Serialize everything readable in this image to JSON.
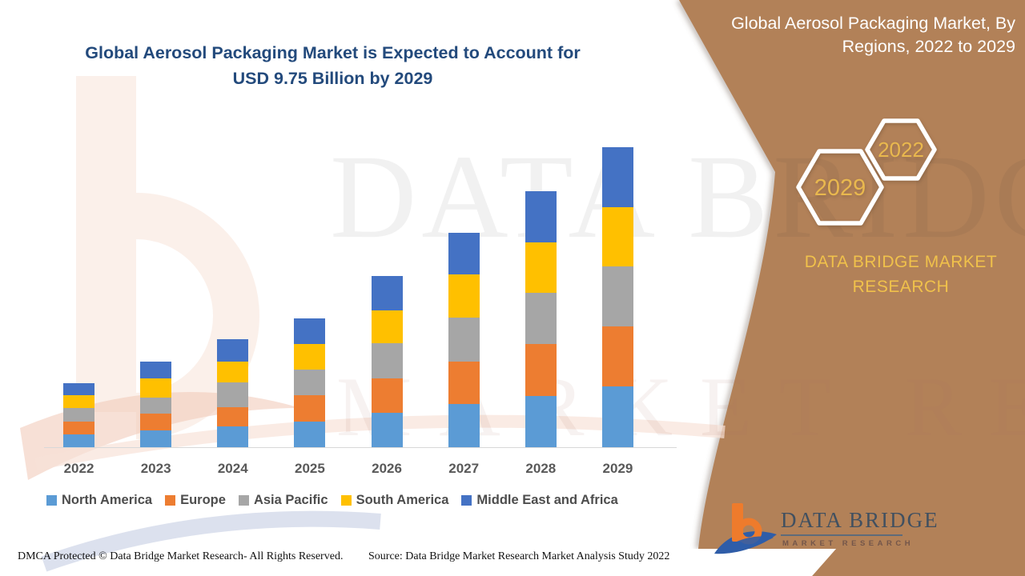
{
  "title": {
    "line1": "Global Aerosol Packaging Market is Expected to Account for",
    "line2": "USD 9.75 Billion by 2029"
  },
  "side_panel": {
    "heading_line1": "Global Aerosol Packaging Market, By",
    "heading_line2": "Regions, 2022 to 2029",
    "hexagon_back_label": "2022",
    "hexagon_front_label": "2029",
    "brand_line1": "DATA BRIDGE MARKET",
    "brand_line2": "RESEARCH",
    "bg_color": "#B28158",
    "gold_color": "#F0C14B"
  },
  "logo": {
    "wordmark": "DATA BRIDGE",
    "subtext": "MARKET RESEARCH"
  },
  "watermarks": {
    "big_text": "DATA BRIDGE",
    "sub_text": "MARKET RESEARCH"
  },
  "footer": {
    "dmca": "DMCA Protected © Data Bridge Market Research- All Rights Reserved.",
    "source": "Source: Data Bridge Market Research Market Analysis Study 2022"
  },
  "chart_data": {
    "type": "bar",
    "stacked": true,
    "title": "Global Aerosol Packaging Market, By Regions, 2022 to 2029",
    "unit": "USD Billion",
    "categories": [
      "2022",
      "2023",
      "2024",
      "2025",
      "2026",
      "2027",
      "2028",
      "2029"
    ],
    "series": [
      {
        "name": "North America",
        "color": "#5B9BD5",
        "values": [
          0.42,
          0.55,
          0.68,
          0.83,
          1.12,
          1.4,
          1.66,
          1.98
        ]
      },
      {
        "name": "Europe",
        "color": "#ED7D31",
        "values": [
          0.42,
          0.55,
          0.62,
          0.86,
          1.12,
          1.38,
          1.69,
          1.95
        ]
      },
      {
        "name": "Asia Pacific",
        "color": "#A6A6A6",
        "values": [
          0.42,
          0.52,
          0.81,
          0.83,
          1.14,
          1.43,
          1.66,
          1.95
        ]
      },
      {
        "name": "South America",
        "color": "#FFC000",
        "values": [
          0.44,
          0.62,
          0.68,
          0.83,
          1.07,
          1.4,
          1.66,
          1.92
        ]
      },
      {
        "name": "Middle East and Africa",
        "color": "#4472C4",
        "values": [
          0.39,
          0.55,
          0.73,
          0.83,
          1.12,
          1.35,
          1.66,
          1.95
        ]
      }
    ],
    "totals": [
      2.09,
      2.79,
      3.52,
      4.18,
      5.57,
      6.96,
      8.33,
      9.75
    ],
    "ylim": [
      0,
      10
    ],
    "gridlines": false,
    "axis_labels_shown": "x-only",
    "legend_position": "bottom"
  }
}
